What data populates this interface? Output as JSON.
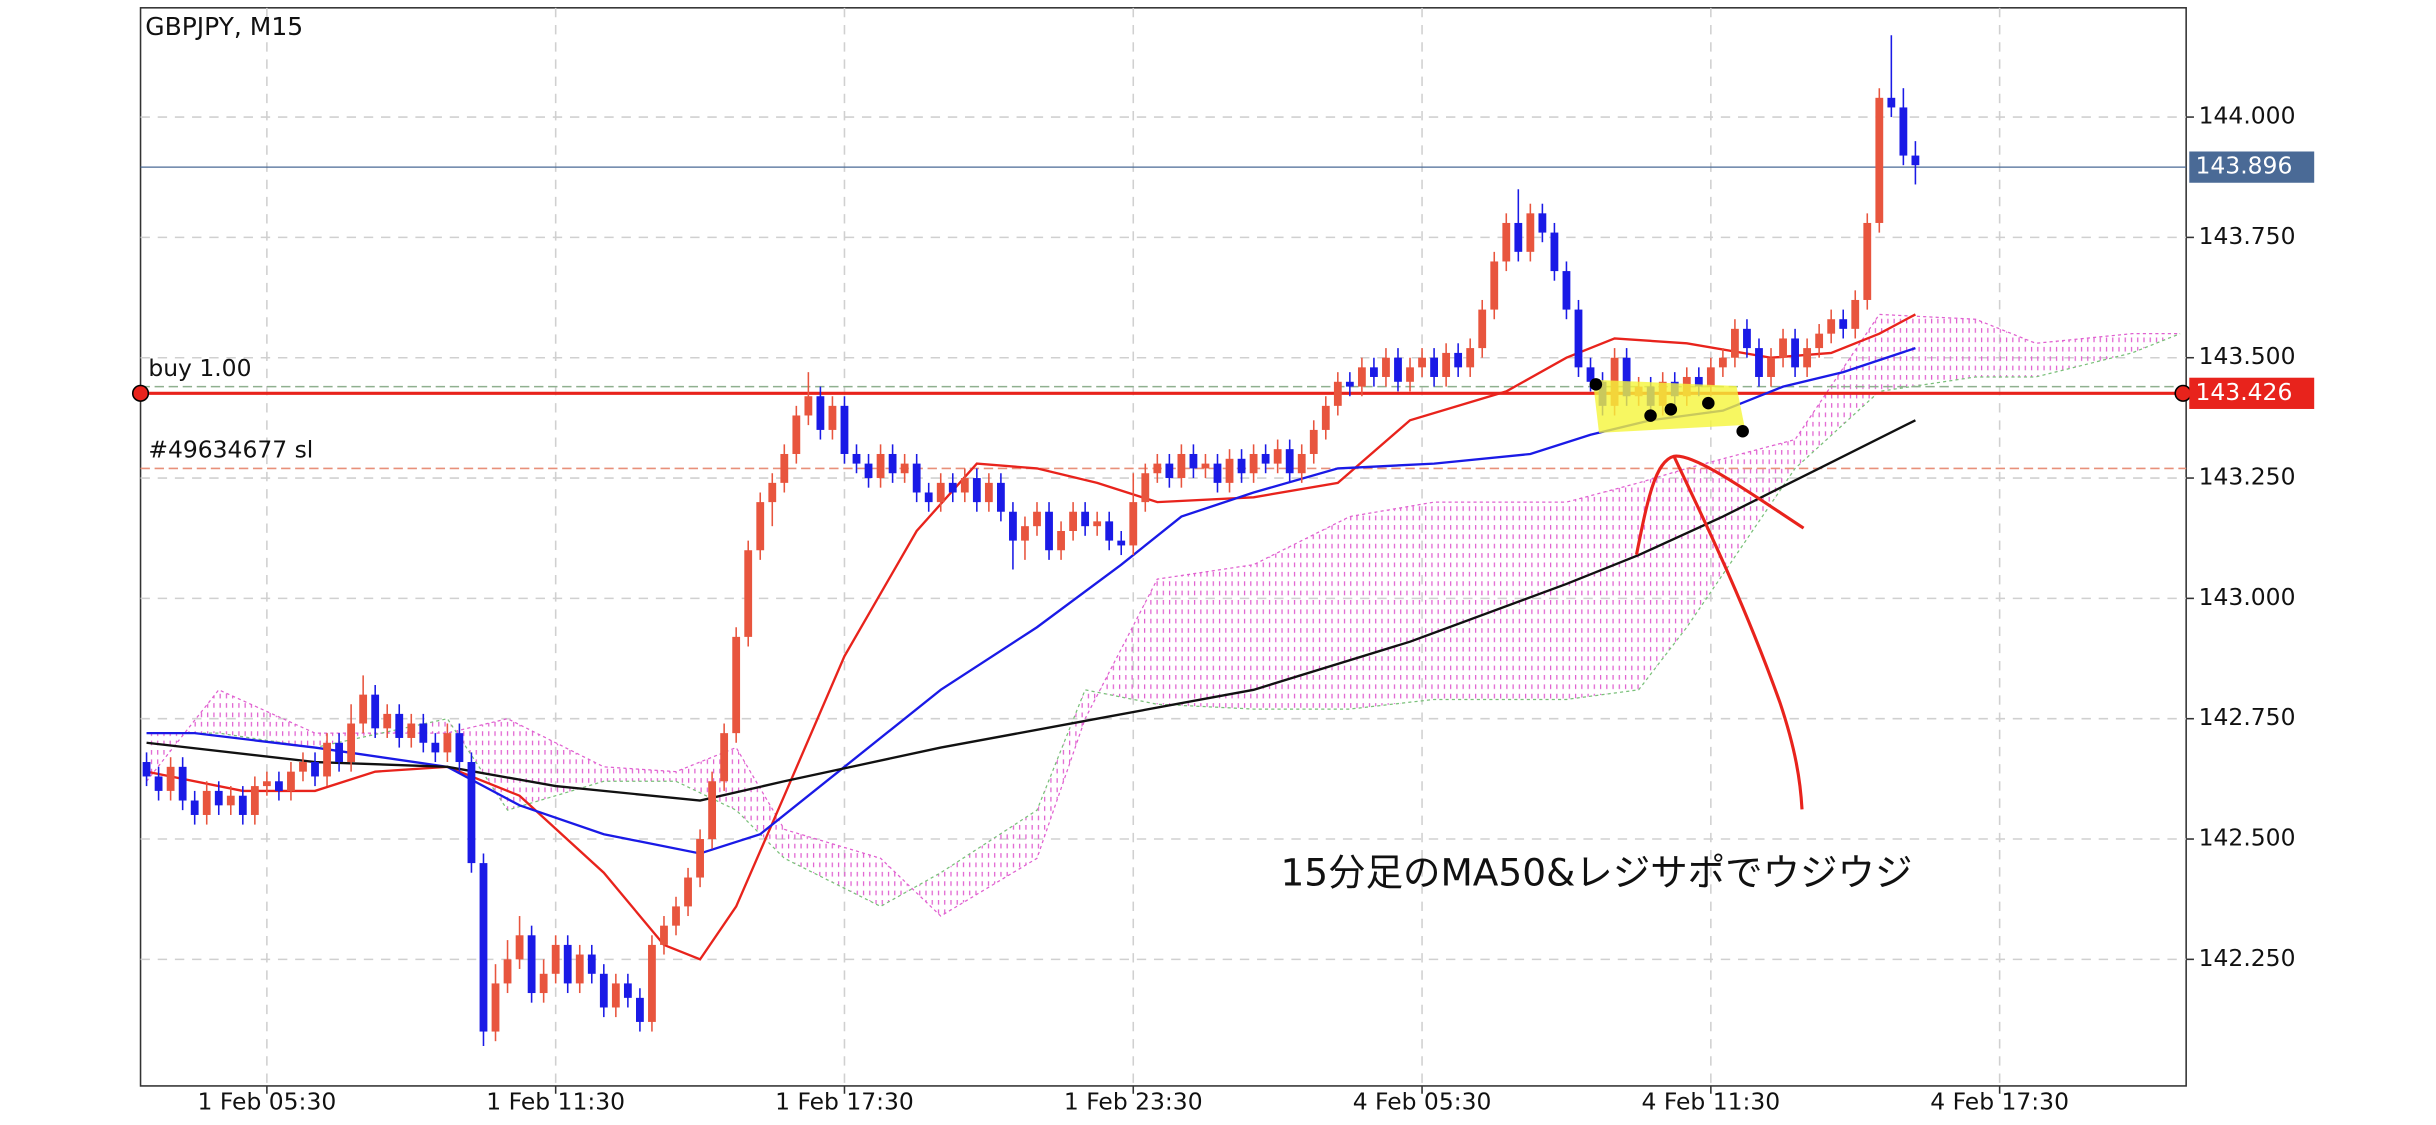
{
  "chart_data": {
    "type": "candlestick",
    "title": "GBPJPY, M15",
    "up_color": "#e8553e",
    "down_color": "#1a1ae6",
    "grid": true,
    "xlim": [
      -0.5,
      169.5
    ],
    "xticks": [
      {
        "value": 10,
        "label": "1 Feb 05:30"
      },
      {
        "value": 34,
        "label": "1 Feb 11:30"
      },
      {
        "value": 58,
        "label": "1 Feb 17:30"
      },
      {
        "value": 82,
        "label": "1 Feb 23:30"
      },
      {
        "value": 106,
        "label": "4 Feb 05:30"
      },
      {
        "value": 130,
        "label": "4 Feb 11:30"
      },
      {
        "value": 154,
        "label": "4 Feb 17:30"
      }
    ],
    "ylim": [
      141.987,
      144.227
    ],
    "yticks": [
      {
        "value": 142.25,
        "label": "142.250"
      },
      {
        "value": 142.5,
        "label": "142.500"
      },
      {
        "value": 142.75,
        "label": "142.750"
      },
      {
        "value": 143,
        "label": "143.000"
      },
      {
        "value": 143.25,
        "label": "143.250"
      },
      {
        "value": 143.5,
        "label": "143.500"
      },
      {
        "value": 143.75,
        "label": "143.750"
      },
      {
        "value": 144,
        "label": "144.000"
      }
    ],
    "current_price": {
      "value": 143.896,
      "color": "#4a6a96"
    },
    "order_level": {
      "value": 143.426,
      "color": "#e8231c"
    },
    "trade_lines": [
      {
        "label": "buy 1.00",
        "value": 143.44,
        "color": "#8fb08f"
      },
      {
        "label": "#49634677 sl",
        "value": 143.27,
        "color": "#e8907a"
      }
    ],
    "annotation": "15分足のMA50&レジサポでウジウジ",
    "candles": [
      [
        142.66,
        142.68,
        142.61,
        142.63
      ],
      [
        142.63,
        142.65,
        142.58,
        142.6
      ],
      [
        142.6,
        142.67,
        142.58,
        142.65
      ],
      [
        142.65,
        142.67,
        142.56,
        142.58
      ],
      [
        142.58,
        142.6,
        142.53,
        142.55
      ],
      [
        142.55,
        142.62,
        142.53,
        142.6
      ],
      [
        142.6,
        142.62,
        142.55,
        142.57
      ],
      [
        142.57,
        142.61,
        142.55,
        142.59
      ],
      [
        142.59,
        142.61,
        142.53,
        142.55
      ],
      [
        142.55,
        142.63,
        142.53,
        142.61
      ],
      [
        142.61,
        142.64,
        142.59,
        142.62
      ],
      [
        142.62,
        142.64,
        142.58,
        142.6
      ],
      [
        142.6,
        142.66,
        142.58,
        142.64
      ],
      [
        142.64,
        142.68,
        142.62,
        142.66
      ],
      [
        142.66,
        142.68,
        142.61,
        142.63
      ],
      [
        142.63,
        142.72,
        142.61,
        142.7
      ],
      [
        142.7,
        142.72,
        142.64,
        142.66
      ],
      [
        142.66,
        142.78,
        142.64,
        142.74
      ],
      [
        142.74,
        142.84,
        142.72,
        142.8
      ],
      [
        142.8,
        142.82,
        142.71,
        142.73
      ],
      [
        142.73,
        142.78,
        142.71,
        142.76
      ],
      [
        142.76,
        142.78,
        142.69,
        142.71
      ],
      [
        142.71,
        142.76,
        142.69,
        142.74
      ],
      [
        142.74,
        142.76,
        142.68,
        142.7
      ],
      [
        142.7,
        142.72,
        142.66,
        142.68
      ],
      [
        142.68,
        142.74,
        142.66,
        142.72
      ],
      [
        142.72,
        142.74,
        142.64,
        142.66
      ],
      [
        142.66,
        142.68,
        142.43,
        142.45
      ],
      [
        142.45,
        142.47,
        142.07,
        142.1
      ],
      [
        142.1,
        142.24,
        142.08,
        142.2
      ],
      [
        142.2,
        142.29,
        142.18,
        142.25
      ],
      [
        142.25,
        142.34,
        142.23,
        142.3
      ],
      [
        142.3,
        142.32,
        142.16,
        142.18
      ],
      [
        142.18,
        142.25,
        142.16,
        142.22
      ],
      [
        142.22,
        142.3,
        142.2,
        142.28
      ],
      [
        142.28,
        142.3,
        142.18,
        142.2
      ],
      [
        142.2,
        142.28,
        142.18,
        142.26
      ],
      [
        142.26,
        142.28,
        142.2,
        142.22
      ],
      [
        142.22,
        142.24,
        142.13,
        142.15
      ],
      [
        142.15,
        142.22,
        142.13,
        142.2
      ],
      [
        142.2,
        142.22,
        142.15,
        142.17
      ],
      [
        142.17,
        142.19,
        142.1,
        142.12
      ],
      [
        142.12,
        142.3,
        142.1,
        142.28
      ],
      [
        142.28,
        142.34,
        142.26,
        142.32
      ],
      [
        142.32,
        142.38,
        142.3,
        142.36
      ],
      [
        142.36,
        142.44,
        142.34,
        142.42
      ],
      [
        142.42,
        142.52,
        142.4,
        142.5
      ],
      [
        142.5,
        142.64,
        142.48,
        142.62
      ],
      [
        142.62,
        142.74,
        142.6,
        142.72
      ],
      [
        142.72,
        142.94,
        142.7,
        142.92
      ],
      [
        142.92,
        143.12,
        142.9,
        143.1
      ],
      [
        143.1,
        143.22,
        143.08,
        143.2
      ],
      [
        143.2,
        143.26,
        143.15,
        143.24
      ],
      [
        143.24,
        143.32,
        143.22,
        143.3
      ],
      [
        143.3,
        143.4,
        143.28,
        143.38
      ],
      [
        143.38,
        143.47,
        143.36,
        143.42
      ],
      [
        143.42,
        143.44,
        143.33,
        143.35
      ],
      [
        143.35,
        143.42,
        143.33,
        143.4
      ],
      [
        143.4,
        143.42,
        143.28,
        143.3
      ],
      [
        143.3,
        143.32,
        143.26,
        143.28
      ],
      [
        143.28,
        143.3,
        143.23,
        143.25
      ],
      [
        143.25,
        143.32,
        143.23,
        143.3
      ],
      [
        143.3,
        143.32,
        143.24,
        143.26
      ],
      [
        143.26,
        143.3,
        143.24,
        143.28
      ],
      [
        143.28,
        143.3,
        143.2,
        143.22
      ],
      [
        143.22,
        143.24,
        143.18,
        143.2
      ],
      [
        143.2,
        143.26,
        143.18,
        143.24
      ],
      [
        143.24,
        143.26,
        143.2,
        143.22
      ],
      [
        143.22,
        143.27,
        143.2,
        143.25
      ],
      [
        143.25,
        143.27,
        143.18,
        143.2
      ],
      [
        143.2,
        143.26,
        143.18,
        143.24
      ],
      [
        143.24,
        143.26,
        143.16,
        143.18
      ],
      [
        143.18,
        143.2,
        143.06,
        143.12
      ],
      [
        143.12,
        143.17,
        143.08,
        143.15
      ],
      [
        143.15,
        143.2,
        143.13,
        143.18
      ],
      [
        143.18,
        143.2,
        143.08,
        143.1
      ],
      [
        143.1,
        143.16,
        143.08,
        143.14
      ],
      [
        143.14,
        143.2,
        143.12,
        143.18
      ],
      [
        143.18,
        143.2,
        143.13,
        143.15
      ],
      [
        143.15,
        143.18,
        143.13,
        143.16
      ],
      [
        143.16,
        143.18,
        143.1,
        143.12
      ],
      [
        143.12,
        143.14,
        143.09,
        143.11
      ],
      [
        143.11,
        143.26,
        143.09,
        143.2
      ],
      [
        143.2,
        143.28,
        143.18,
        143.26
      ],
      [
        143.26,
        143.3,
        143.24,
        143.28
      ],
      [
        143.28,
        143.3,
        143.23,
        143.25
      ],
      [
        143.25,
        143.32,
        143.23,
        143.3
      ],
      [
        143.3,
        143.32,
        143.25,
        143.27
      ],
      [
        143.27,
        143.3,
        143.25,
        143.28
      ],
      [
        143.28,
        143.3,
        143.22,
        143.24
      ],
      [
        143.24,
        143.31,
        143.22,
        143.29
      ],
      [
        143.29,
        143.31,
        143.24,
        143.26
      ],
      [
        143.26,
        143.32,
        143.24,
        143.3
      ],
      [
        143.3,
        143.32,
        143.26,
        143.28
      ],
      [
        143.28,
        143.33,
        143.26,
        143.31
      ],
      [
        143.31,
        143.33,
        143.24,
        143.26
      ],
      [
        143.26,
        143.32,
        143.24,
        143.3
      ],
      [
        143.3,
        143.37,
        143.28,
        143.35
      ],
      [
        143.35,
        143.42,
        143.33,
        143.4
      ],
      [
        143.4,
        143.47,
        143.38,
        143.45
      ],
      [
        143.45,
        143.47,
        143.42,
        143.44
      ],
      [
        143.44,
        143.5,
        143.42,
        143.48
      ],
      [
        143.48,
        143.5,
        143.44,
        143.46
      ],
      [
        143.46,
        143.52,
        143.44,
        143.5
      ],
      [
        143.5,
        143.52,
        143.43,
        143.45
      ],
      [
        143.45,
        143.5,
        143.43,
        143.48
      ],
      [
        143.48,
        143.52,
        143.46,
        143.5
      ],
      [
        143.5,
        143.52,
        143.44,
        143.46
      ],
      [
        143.46,
        143.53,
        143.44,
        143.51
      ],
      [
        143.51,
        143.53,
        143.46,
        143.48
      ],
      [
        143.48,
        143.54,
        143.46,
        143.52
      ],
      [
        143.52,
        143.62,
        143.5,
        143.6
      ],
      [
        143.6,
        143.72,
        143.58,
        143.7
      ],
      [
        143.7,
        143.8,
        143.68,
        143.78
      ],
      [
        143.78,
        143.85,
        143.7,
        143.72
      ],
      [
        143.72,
        143.82,
        143.7,
        143.8
      ],
      [
        143.8,
        143.82,
        143.74,
        143.76
      ],
      [
        143.76,
        143.78,
        143.66,
        143.68
      ],
      [
        143.68,
        143.7,
        143.58,
        143.6
      ],
      [
        143.6,
        143.62,
        143.46,
        143.48
      ],
      [
        143.48,
        143.5,
        143.43,
        143.45
      ],
      [
        143.45,
        143.47,
        143.38,
        143.4
      ],
      [
        143.4,
        143.52,
        143.38,
        143.5
      ],
      [
        143.5,
        143.52,
        143.4,
        143.42
      ],
      [
        143.42,
        143.46,
        143.4,
        143.44
      ],
      [
        143.44,
        143.46,
        143.38,
        143.4
      ],
      [
        143.4,
        143.47,
        143.38,
        143.45
      ],
      [
        143.45,
        143.47,
        143.4,
        143.42
      ],
      [
        143.42,
        143.48,
        143.4,
        143.46
      ],
      [
        143.46,
        143.48,
        143.42,
        143.44
      ],
      [
        143.44,
        143.5,
        143.42,
        143.48
      ],
      [
        143.48,
        143.52,
        143.46,
        143.5
      ],
      [
        143.5,
        143.58,
        143.48,
        143.56
      ],
      [
        143.56,
        143.58,
        143.5,
        143.52
      ],
      [
        143.52,
        143.54,
        143.44,
        143.46
      ],
      [
        143.46,
        143.52,
        143.44,
        143.5
      ],
      [
        143.5,
        143.56,
        143.48,
        143.54
      ],
      [
        143.54,
        143.56,
        143.46,
        143.48
      ],
      [
        143.48,
        143.54,
        143.46,
        143.52
      ],
      [
        143.52,
        143.57,
        143.5,
        143.55
      ],
      [
        143.55,
        143.6,
        143.53,
        143.58
      ],
      [
        143.58,
        143.6,
        143.54,
        143.56
      ],
      [
        143.56,
        143.64,
        143.54,
        143.62
      ],
      [
        143.62,
        143.8,
        143.6,
        143.78
      ],
      [
        143.78,
        144.06,
        143.76,
        144.04
      ],
      [
        144.04,
        144.17,
        144.0,
        144.02
      ],
      [
        144.02,
        144.06,
        143.9,
        143.92
      ],
      [
        143.92,
        143.95,
        143.86,
        143.9
      ]
    ],
    "moving_averages": [
      {
        "color": "#e8231c",
        "x": [
          0,
          8,
          14,
          19,
          25,
          31,
          38,
          43,
          46,
          49,
          53,
          58,
          64,
          69,
          74,
          79,
          84,
          92,
          99,
          105,
          113,
          118,
          122,
          128,
          135,
          140,
          144,
          147
        ],
        "values": [
          142.64,
          142.6,
          142.6,
          142.64,
          142.65,
          142.59,
          142.43,
          142.28,
          142.25,
          142.36,
          142.59,
          142.88,
          143.14,
          143.28,
          143.27,
          143.24,
          143.2,
          143.21,
          143.24,
          143.37,
          143.43,
          143.5,
          143.54,
          143.53,
          143.5,
          143.51,
          143.55,
          143.59
        ]
      },
      {
        "color": "#1a1ae6",
        "x": [
          0,
          4,
          14,
          25,
          31,
          38,
          46,
          51,
          58,
          66,
          74,
          81,
          86,
          92,
          99,
          107,
          115,
          120,
          125,
          131,
          136,
          141,
          147
        ],
        "values": [
          142.72,
          142.72,
          142.69,
          142.65,
          142.57,
          142.51,
          142.47,
          142.51,
          142.65,
          142.81,
          142.94,
          143.07,
          143.17,
          143.22,
          143.27,
          143.28,
          143.3,
          143.34,
          143.37,
          143.39,
          143.44,
          143.47,
          143.52
        ]
      },
      {
        "color": "#111111",
        "x": [
          0,
          14,
          25,
          34,
          46,
          53,
          66,
          79,
          92,
          105,
          118,
          124,
          131,
          139,
          147
        ],
        "values": [
          142.7,
          142.66,
          142.65,
          142.61,
          142.58,
          142.62,
          142.69,
          142.75,
          142.81,
          142.91,
          143.03,
          143.09,
          143.17,
          143.27,
          143.37
        ]
      }
    ],
    "cloud": {
      "color": "#e060d0",
      "x": [
        0,
        6,
        14,
        25,
        30,
        38,
        44,
        49,
        53,
        61,
        66,
        74,
        78,
        84,
        92,
        100,
        107,
        118,
        124,
        128,
        137,
        144,
        152,
        157,
        165,
        169
      ],
      "span_a": [
        142.62,
        142.81,
        142.72,
        142.72,
        142.75,
        142.65,
        142.64,
        142.69,
        142.52,
        142.46,
        142.34,
        142.46,
        142.75,
        143.04,
        143.07,
        143.17,
        143.2,
        143.2,
        143.24,
        143.27,
        143.33,
        143.59,
        143.58,
        143.53,
        143.55,
        143.55
      ],
      "span_b": [
        142.72,
        142.72,
        142.69,
        142.75,
        142.56,
        142.62,
        142.62,
        142.56,
        142.46,
        142.36,
        142.43,
        142.56,
        142.81,
        142.78,
        142.77,
        142.77,
        142.79,
        142.79,
        142.81,
        142.94,
        143.27,
        143.43,
        143.46,
        143.46,
        143.51,
        143.55
      ]
    }
  }
}
